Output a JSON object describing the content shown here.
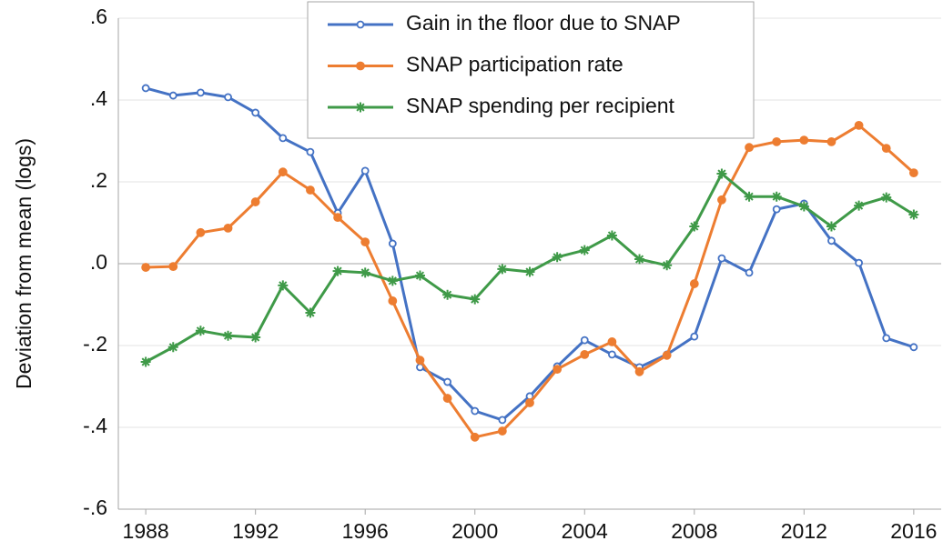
{
  "chart_data": {
    "type": "line",
    "ylabel": "Deviation from mean (logs)",
    "x": [
      1988,
      1989,
      1990,
      1991,
      1992,
      1993,
      1994,
      1995,
      1996,
      1997,
      1998,
      1999,
      2000,
      2001,
      2002,
      2003,
      2004,
      2005,
      2006,
      2007,
      2008,
      2009,
      2010,
      2011,
      2012,
      2013,
      2014,
      2015,
      2016
    ],
    "xlim": [
      1987,
      2017
    ],
    "xticks": [
      1988,
      1992,
      1996,
      2000,
      2004,
      2008,
      2012,
      2016
    ],
    "ylim": [
      -0.6,
      0.6
    ],
    "yticks": [
      {
        "value": 0.6,
        "label": ".6"
      },
      {
        "value": 0.4,
        "label": ".4"
      },
      {
        "value": 0.2,
        "label": ".2"
      },
      {
        "value": 0,
        "label": ".0"
      },
      {
        "value": -0.2,
        "label": "-.2"
      },
      {
        "value": -0.4,
        "label": "-.4"
      },
      {
        "value": -0.6,
        "label": "-.6"
      }
    ],
    "grid": true,
    "legend": "top",
    "series": [
      {
        "name": "Gain in the floor due to SNAP",
        "color": "#4472c4",
        "marker": "open-circle",
        "values": [
          0.429,
          0.411,
          0.418,
          0.407,
          0.369,
          0.307,
          0.273,
          0.124,
          0.227,
          0.049,
          -0.253,
          -0.289,
          -0.36,
          -0.382,
          -0.324,
          -0.251,
          -0.187,
          -0.222,
          -0.253,
          -0.222,
          -0.178,
          0.013,
          -0.022,
          0.133,
          0.147,
          0.056,
          0.002,
          -0.182,
          -0.204
        ]
      },
      {
        "name": "SNAP participation rate",
        "color": "#ed7d31",
        "marker": "circle",
        "values": [
          -0.009,
          -0.007,
          0.076,
          0.087,
          0.151,
          0.224,
          0.18,
          0.113,
          0.053,
          -0.091,
          -0.236,
          -0.329,
          -0.424,
          -0.409,
          -0.34,
          -0.258,
          -0.222,
          -0.191,
          -0.264,
          -0.224,
          -0.049,
          0.156,
          0.284,
          0.298,
          0.302,
          0.298,
          0.338,
          0.282,
          0.222
        ]
      },
      {
        "name": "SNAP spending per recipient",
        "color": "#3f9a48",
        "marker": "star",
        "values": [
          -0.24,
          -0.204,
          -0.164,
          -0.176,
          -0.18,
          -0.053,
          -0.12,
          -0.018,
          -0.022,
          -0.042,
          -0.029,
          -0.076,
          -0.087,
          -0.013,
          -0.02,
          0.016,
          0.033,
          0.069,
          0.011,
          -0.004,
          0.091,
          0.22,
          0.164,
          0.164,
          0.14,
          0.091,
          0.142,
          0.162,
          0.12
        ]
      }
    ]
  }
}
